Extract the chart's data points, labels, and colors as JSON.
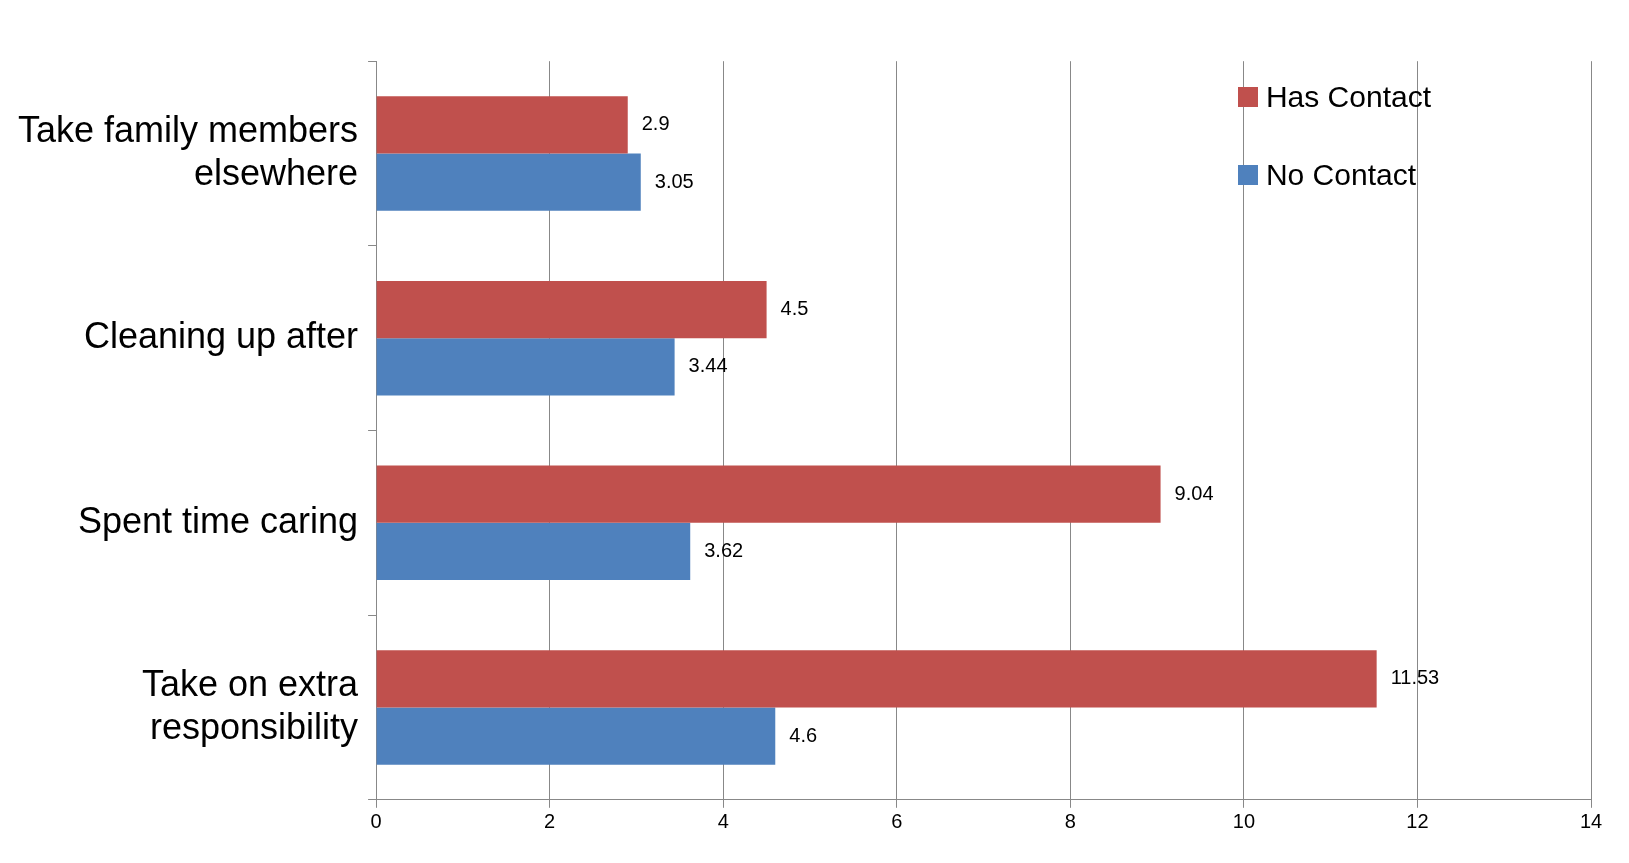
{
  "chart_data": {
    "type": "bar",
    "orientation": "horizontal",
    "categories": [
      "Take family members elsewhere",
      "Cleaning up after",
      "Spent time caring",
      "Take on extra responsibility"
    ],
    "series": [
      {
        "name": "Has Contact",
        "color": "#c0504d",
        "values": [
          2.9,
          4.5,
          9.04,
          11.53
        ]
      },
      {
        "name": "No Contact",
        "color": "#4f81bd",
        "values": [
          3.05,
          3.44,
          3.62,
          4.6
        ]
      }
    ],
    "xlim": [
      0,
      14
    ],
    "xticks": [
      0,
      2,
      4,
      6,
      8,
      10,
      12,
      14
    ],
    "grid": "x",
    "legend": "top right",
    "data_labels": true
  }
}
